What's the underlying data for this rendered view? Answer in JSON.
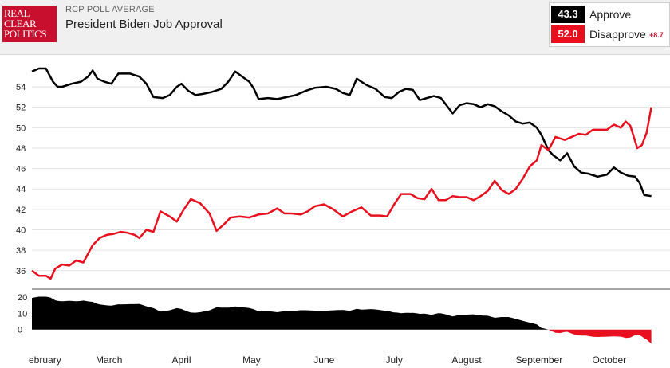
{
  "header": {
    "logo_lines": [
      "REAL",
      "CLEAR",
      "POLITICS"
    ],
    "subtitle": "RCP POLL AVERAGE",
    "title": "President Biden Job Approval"
  },
  "legend": {
    "approve": {
      "value": "43.3",
      "label": "Approve",
      "color": "#000000"
    },
    "disapprove": {
      "value": "52.0",
      "label": "Disapprove",
      "spread": "+8.7",
      "color": "#e8101e"
    }
  },
  "chart_data": {
    "type": "line",
    "title": "President Biden Job Approval",
    "x_start": "2021-01-27",
    "x_end": "2021-10-27",
    "month_labels": [
      {
        "label": "ebruary",
        "date": "2021-02-01"
      },
      {
        "label": "March",
        "date": "2021-03-01"
      },
      {
        "label": "April",
        "date": "2021-04-01"
      },
      {
        "label": "May",
        "date": "2021-05-01"
      },
      {
        "label": "June",
        "date": "2021-06-01"
      },
      {
        "label": "July",
        "date": "2021-07-01"
      },
      {
        "label": "August",
        "date": "2021-08-01"
      },
      {
        "label": "September",
        "date": "2021-09-01"
      },
      {
        "label": "October",
        "date": "2021-10-01"
      }
    ],
    "ylim": [
      34.5,
      56.5
    ],
    "yticks": [
      36,
      38,
      40,
      42,
      44,
      46,
      48,
      50,
      52,
      54
    ],
    "grid": true,
    "series": [
      {
        "name": "Approve",
        "color": "#000000",
        "points": [
          [
            "2021-01-27",
            55.5
          ],
          [
            "2021-01-30",
            55.8
          ],
          [
            "2021-02-02",
            55.8
          ],
          [
            "2021-02-05",
            54.5
          ],
          [
            "2021-02-07",
            54.0
          ],
          [
            "2021-02-09",
            54.0
          ],
          [
            "2021-02-13",
            54.3
          ],
          [
            "2021-02-17",
            54.5
          ],
          [
            "2021-02-20",
            55.0
          ],
          [
            "2021-02-22",
            55.6
          ],
          [
            "2021-02-24",
            54.8
          ],
          [
            "2021-02-27",
            54.5
          ],
          [
            "2021-03-02",
            54.3
          ],
          [
            "2021-03-05",
            55.3
          ],
          [
            "2021-03-10",
            55.3
          ],
          [
            "2021-03-14",
            55.0
          ],
          [
            "2021-03-17",
            54.3
          ],
          [
            "2021-03-20",
            53.0
          ],
          [
            "2021-03-24",
            52.9
          ],
          [
            "2021-03-27",
            53.2
          ],
          [
            "2021-03-30",
            54.0
          ],
          [
            "2021-04-01",
            54.3
          ],
          [
            "2021-04-04",
            53.6
          ],
          [
            "2021-04-07",
            53.2
          ],
          [
            "2021-04-10",
            53.3
          ],
          [
            "2021-04-14",
            53.5
          ],
          [
            "2021-04-18",
            53.8
          ],
          [
            "2021-04-21",
            54.5
          ],
          [
            "2021-04-24",
            55.5
          ],
          [
            "2021-04-27",
            55.0
          ],
          [
            "2021-04-30",
            54.5
          ],
          [
            "2021-05-02",
            53.8
          ],
          [
            "2021-05-04",
            52.8
          ],
          [
            "2021-05-08",
            52.9
          ],
          [
            "2021-05-12",
            52.8
          ],
          [
            "2021-05-16",
            53.0
          ],
          [
            "2021-05-20",
            53.2
          ],
          [
            "2021-05-24",
            53.6
          ],
          [
            "2021-05-28",
            53.9
          ],
          [
            "2021-06-02",
            54.0
          ],
          [
            "2021-06-06",
            53.8
          ],
          [
            "2021-06-09",
            53.4
          ],
          [
            "2021-06-12",
            53.2
          ],
          [
            "2021-06-15",
            54.8
          ],
          [
            "2021-06-19",
            54.2
          ],
          [
            "2021-06-23",
            53.8
          ],
          [
            "2021-06-27",
            53.0
          ],
          [
            "2021-06-30",
            52.9
          ],
          [
            "2021-07-03",
            53.5
          ],
          [
            "2021-07-06",
            53.8
          ],
          [
            "2021-07-09",
            53.7
          ],
          [
            "2021-07-12",
            52.7
          ],
          [
            "2021-07-15",
            52.9
          ],
          [
            "2021-07-18",
            53.1
          ],
          [
            "2021-07-21",
            52.9
          ],
          [
            "2021-07-23",
            52.3
          ],
          [
            "2021-07-26",
            51.4
          ],
          [
            "2021-07-29",
            52.2
          ],
          [
            "2021-08-01",
            52.4
          ],
          [
            "2021-08-04",
            52.3
          ],
          [
            "2021-08-07",
            52.0
          ],
          [
            "2021-08-10",
            52.3
          ],
          [
            "2021-08-13",
            52.1
          ],
          [
            "2021-08-16",
            51.6
          ],
          [
            "2021-08-19",
            51.2
          ],
          [
            "2021-08-22",
            50.6
          ],
          [
            "2021-08-25",
            50.4
          ],
          [
            "2021-08-28",
            50.5
          ],
          [
            "2021-08-31",
            50.0
          ],
          [
            "2021-09-02",
            49.3
          ],
          [
            "2021-09-05",
            47.8
          ],
          [
            "2021-09-07",
            47.3
          ],
          [
            "2021-09-10",
            46.8
          ],
          [
            "2021-09-13",
            47.5
          ],
          [
            "2021-09-16",
            46.2
          ],
          [
            "2021-09-19",
            45.6
          ],
          [
            "2021-09-22",
            45.5
          ],
          [
            "2021-09-26",
            45.2
          ],
          [
            "2021-09-30",
            45.4
          ],
          [
            "2021-10-03",
            46.1
          ],
          [
            "2021-10-06",
            45.6
          ],
          [
            "2021-10-09",
            45.3
          ],
          [
            "2021-10-12",
            45.2
          ],
          [
            "2021-10-14",
            44.6
          ],
          [
            "2021-10-16",
            43.4
          ],
          [
            "2021-10-19",
            43.3
          ]
        ]
      },
      {
        "name": "Disapprove",
        "color": "#e8101e",
        "points": [
          [
            "2021-01-27",
            36.0
          ],
          [
            "2021-01-30",
            35.5
          ],
          [
            "2021-02-02",
            35.5
          ],
          [
            "2021-02-04",
            35.2
          ],
          [
            "2021-02-06",
            36.2
          ],
          [
            "2021-02-09",
            36.6
          ],
          [
            "2021-02-12",
            36.5
          ],
          [
            "2021-02-15",
            37.0
          ],
          [
            "2021-02-18",
            36.8
          ],
          [
            "2021-02-22",
            38.5
          ],
          [
            "2021-02-25",
            39.2
          ],
          [
            "2021-02-28",
            39.5
          ],
          [
            "2021-03-03",
            39.6
          ],
          [
            "2021-03-06",
            39.8
          ],
          [
            "2021-03-09",
            39.7
          ],
          [
            "2021-03-12",
            39.5
          ],
          [
            "2021-03-14",
            39.2
          ],
          [
            "2021-03-17",
            40.0
          ],
          [
            "2021-03-20",
            39.8
          ],
          [
            "2021-03-23",
            41.8
          ],
          [
            "2021-03-27",
            41.3
          ],
          [
            "2021-03-30",
            40.8
          ],
          [
            "2021-04-02",
            42.0
          ],
          [
            "2021-04-05",
            43.0
          ],
          [
            "2021-04-09",
            42.6
          ],
          [
            "2021-04-13",
            41.6
          ],
          [
            "2021-04-16",
            39.9
          ],
          [
            "2021-04-19",
            40.5
          ],
          [
            "2021-04-22",
            41.2
          ],
          [
            "2021-04-26",
            41.3
          ],
          [
            "2021-04-30",
            41.2
          ],
          [
            "2021-05-04",
            41.5
          ],
          [
            "2021-05-08",
            41.6
          ],
          [
            "2021-05-12",
            42.1
          ],
          [
            "2021-05-15",
            41.6
          ],
          [
            "2021-05-18",
            41.6
          ],
          [
            "2021-05-22",
            41.5
          ],
          [
            "2021-05-25",
            41.8
          ],
          [
            "2021-05-28",
            42.3
          ],
          [
            "2021-06-01",
            42.5
          ],
          [
            "2021-06-05",
            42.0
          ],
          [
            "2021-06-09",
            41.3
          ],
          [
            "2021-06-13",
            41.8
          ],
          [
            "2021-06-17",
            42.2
          ],
          [
            "2021-06-21",
            41.4
          ],
          [
            "2021-06-25",
            41.4
          ],
          [
            "2021-06-28",
            41.3
          ],
          [
            "2021-07-01",
            42.5
          ],
          [
            "2021-07-04",
            43.5
          ],
          [
            "2021-07-08",
            43.5
          ],
          [
            "2021-07-11",
            43.1
          ],
          [
            "2021-07-14",
            43.0
          ],
          [
            "2021-07-17",
            44.0
          ],
          [
            "2021-07-20",
            42.9
          ],
          [
            "2021-07-23",
            42.9
          ],
          [
            "2021-07-26",
            43.3
          ],
          [
            "2021-07-29",
            43.2
          ],
          [
            "2021-08-01",
            43.2
          ],
          [
            "2021-08-04",
            42.9
          ],
          [
            "2021-08-07",
            43.3
          ],
          [
            "2021-08-10",
            43.8
          ],
          [
            "2021-08-13",
            44.8
          ],
          [
            "2021-08-16",
            43.9
          ],
          [
            "2021-08-19",
            43.5
          ],
          [
            "2021-08-22",
            44.0
          ],
          [
            "2021-08-25",
            45.0
          ],
          [
            "2021-08-28",
            46.2
          ],
          [
            "2021-08-31",
            46.8
          ],
          [
            "2021-09-02",
            48.3
          ],
          [
            "2021-09-05",
            47.8
          ],
          [
            "2021-09-08",
            49.1
          ],
          [
            "2021-09-12",
            48.8
          ],
          [
            "2021-09-15",
            49.1
          ],
          [
            "2021-09-18",
            49.4
          ],
          [
            "2021-09-21",
            49.3
          ],
          [
            "2021-09-24",
            49.8
          ],
          [
            "2021-09-27",
            49.8
          ],
          [
            "2021-09-30",
            49.8
          ],
          [
            "2021-10-03",
            50.3
          ],
          [
            "2021-10-06",
            50.0
          ],
          [
            "2021-10-08",
            50.6
          ],
          [
            "2021-10-10",
            50.2
          ],
          [
            "2021-10-13",
            48.0
          ],
          [
            "2021-10-15",
            48.3
          ],
          [
            "2021-10-17",
            49.5
          ],
          [
            "2021-10-19",
            52.0
          ]
        ]
      }
    ],
    "spread_panel": {
      "yticks": [
        0,
        10,
        20
      ],
      "ylim": [
        -10,
        22
      ],
      "color_positive": "#000000",
      "color_negative": "#e8101e"
    }
  }
}
